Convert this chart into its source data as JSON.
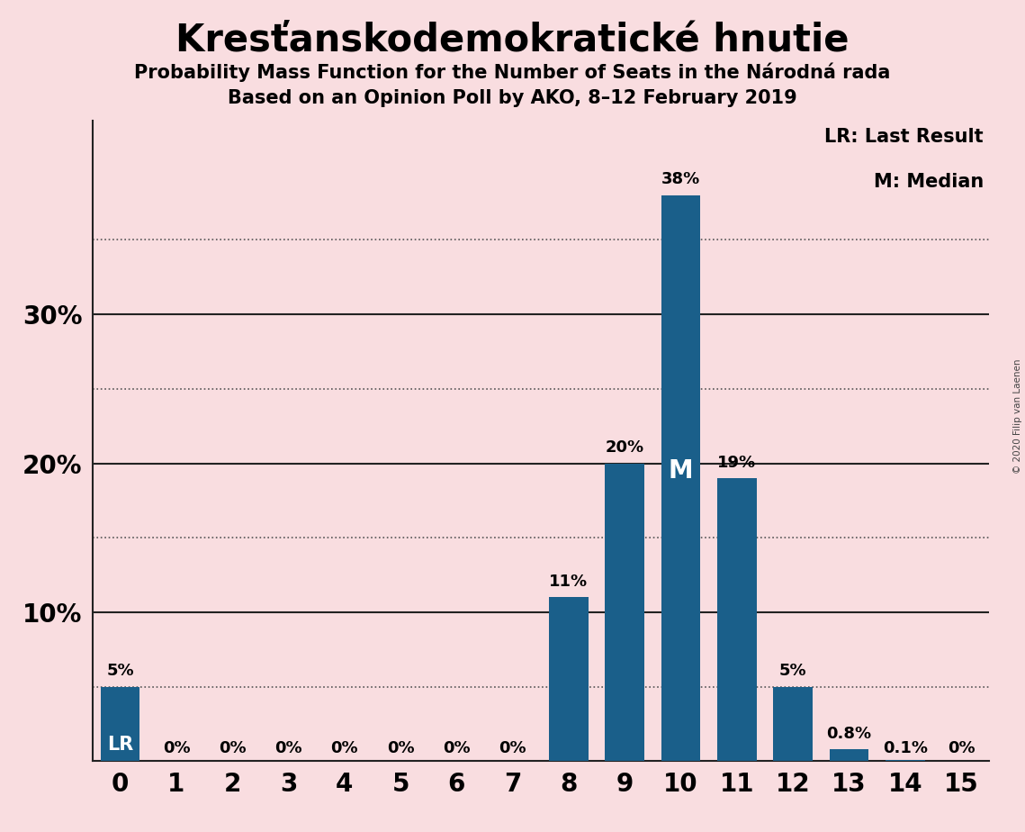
{
  "title": "Kresťanskodemokratické hnutie",
  "subtitle1": "Probability Mass Function for the Number of Seats in the Národná rada",
  "subtitle2": "Based on an Opinion Poll by AKO, 8–12 February 2019",
  "copyright_text": "© 2020 Filip van Laenen",
  "x_values": [
    0,
    1,
    2,
    3,
    4,
    5,
    6,
    7,
    8,
    9,
    10,
    11,
    12,
    13,
    14,
    15
  ],
  "y_values": [
    5,
    0,
    0,
    0,
    0,
    0,
    0,
    0,
    11,
    20,
    38,
    19,
    5,
    0.8,
    0.1,
    0
  ],
  "y_labels": [
    "5%",
    "0%",
    "0%",
    "0%",
    "0%",
    "0%",
    "0%",
    "0%",
    "11%",
    "20%",
    "38%",
    "19%",
    "5%",
    "0.8%",
    "0.1%",
    "0%"
  ],
  "bar_color": "#1a5f8a",
  "background_color": "#f9dde0",
  "lr_x": 0,
  "lr_label": "LR",
  "median_x": 10,
  "median_label": "M",
  "legend_lr": "LR: Last Result",
  "legend_m": "M: Median",
  "xlim": [
    -0.5,
    15.5
  ],
  "ylim": [
    0,
    43
  ],
  "dotted_lines": [
    5,
    15,
    25,
    35
  ],
  "solid_lines": [
    10,
    20,
    30
  ],
  "ytick_positions": [
    10,
    20,
    30
  ],
  "ytick_labels": [
    "10%",
    "20%",
    "30%"
  ]
}
